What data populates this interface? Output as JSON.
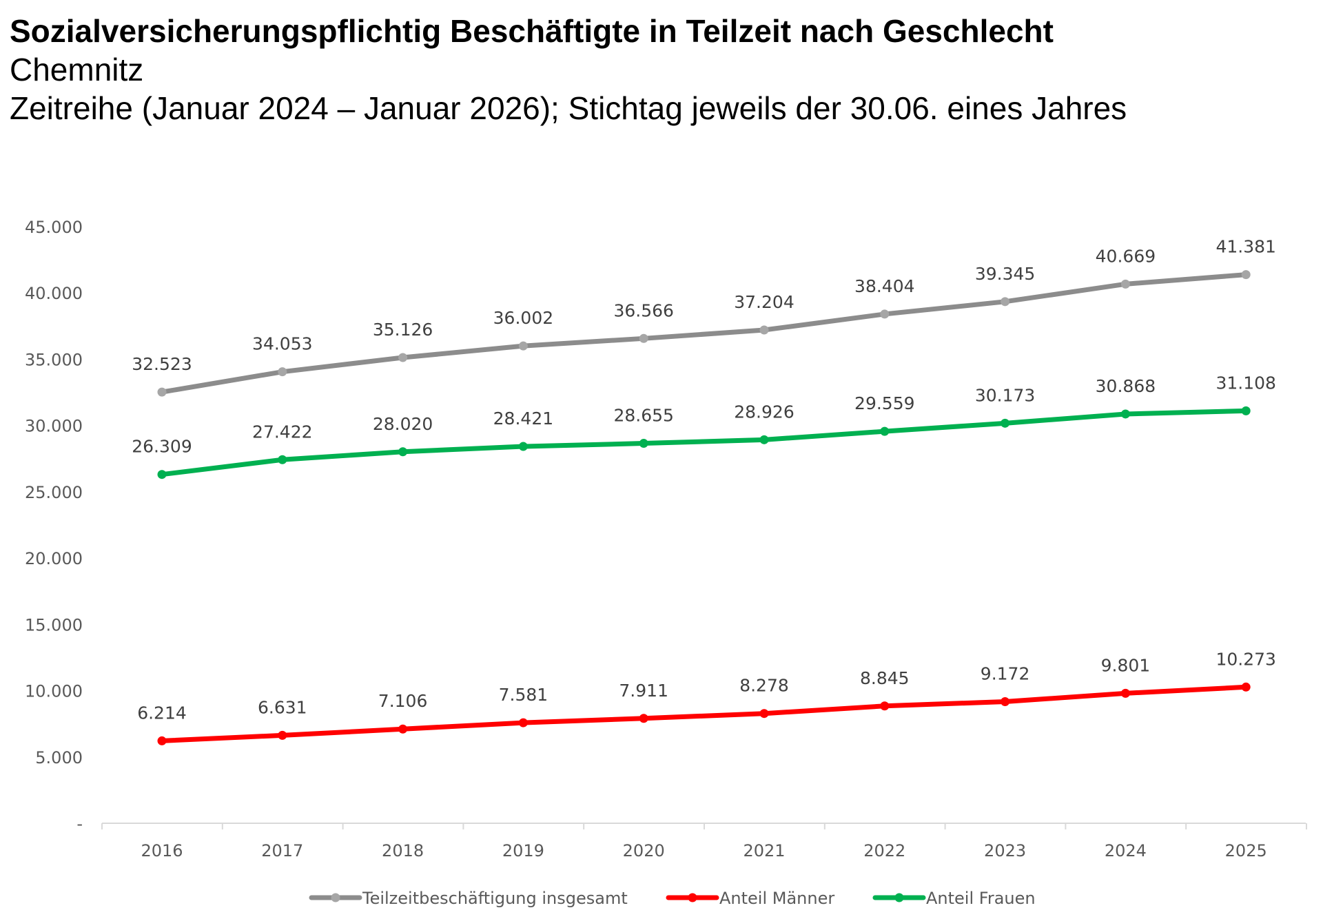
{
  "header": {
    "title": "Sozialversicherungspflichtig Beschäftigte in Teilzeit nach Geschlecht",
    "subtitle": "Chemnitz",
    "subtitle2": "Zeitreihe (Januar 2024 – Januar 2026); Stichtag jeweils der 30.06. eines Jahres"
  },
  "chart_data": {
    "type": "line",
    "title": "Sozialversicherungspflichtig Beschäftigte in Teilzeit nach Geschlecht",
    "xlabel": "",
    "ylabel": "",
    "categories": [
      "2016",
      "2017",
      "2018",
      "2019",
      "2020",
      "2021",
      "2022",
      "2023",
      "2024",
      "2025"
    ],
    "ylim": [
      0,
      45000
    ],
    "yticks": [
      0,
      5000,
      10000,
      15000,
      20000,
      25000,
      30000,
      35000,
      40000,
      45000
    ],
    "ytick_labels": [
      "-",
      "5.000",
      "10.000",
      "15.000",
      "20.000",
      "25.000",
      "30.000",
      "35.000",
      "40.000",
      "45.000"
    ],
    "grid": false,
    "legend_position": "bottom",
    "series": [
      {
        "name": "Teilzeitbeschäftigung insgesamt",
        "color": "#8c8c8c",
        "marker_color": "#a6a6a6",
        "values": [
          32523,
          34053,
          35126,
          36002,
          36566,
          37204,
          38404,
          39345,
          40669,
          41381
        ],
        "labels": [
          "32.523",
          "34.053",
          "35.126",
          "36.002",
          "36.566",
          "37.204",
          "38.404",
          "39.345",
          "40.669",
          "41.381"
        ]
      },
      {
        "name": "Anteil Männer",
        "color": "#ff0000",
        "marker_color": "#ff0000",
        "values": [
          6214,
          6631,
          7106,
          7581,
          7911,
          8278,
          8845,
          9172,
          9801,
          10273
        ],
        "labels": [
          "6.214",
          "6.631",
          "7.106",
          "7.581",
          "7.911",
          "8.278",
          "8.845",
          "9.172",
          "9.801",
          "10.273"
        ]
      },
      {
        "name": "Anteil Frauen",
        "color": "#00b050",
        "marker_color": "#00b050",
        "values": [
          26309,
          27422,
          28020,
          28421,
          28655,
          28926,
          29559,
          30173,
          30868,
          31108
        ],
        "labels": [
          "26.309",
          "27.422",
          "28.020",
          "28.421",
          "28.655",
          "28.926",
          "29.559",
          "30.173",
          "30.868",
          "31.108"
        ]
      }
    ]
  }
}
